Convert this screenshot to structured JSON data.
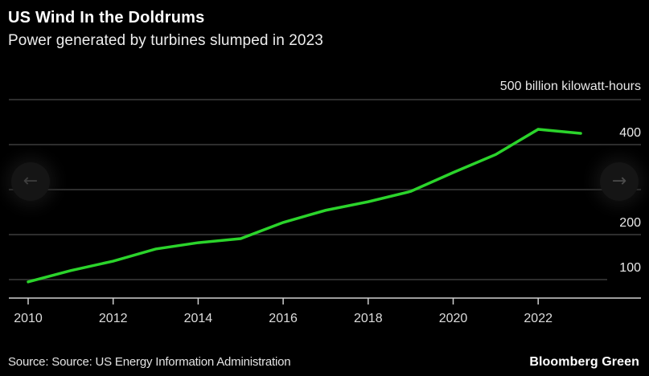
{
  "header": {
    "title": "US Wind In the Doldrums",
    "subtitle": "Power generated by turbines slumped in 2023"
  },
  "chart_data": {
    "type": "line",
    "title": "US Wind In the Doldrums",
    "subtitle": "Power generated by turbines slumped in 2023",
    "unit_label": "500 billion kilowatt-hours",
    "x": [
      2010,
      2011,
      2012,
      2013,
      2014,
      2015,
      2016,
      2017,
      2018,
      2019,
      2020,
      2021,
      2022,
      2023
    ],
    "series": [
      {
        "name": "US wind power generated (billion kilowatt-hours)",
        "color": "#2bd42b",
        "values": [
          95,
          120,
          141,
          168,
          182,
          191,
          227,
          254,
          273,
          296,
          338,
          378,
          434,
          425
        ]
      }
    ],
    "x_tick_labels": [
      "2010",
      "2012",
      "2014",
      "2016",
      "2018",
      "2020",
      "2022"
    ],
    "x_ticks": [
      2010,
      2012,
      2014,
      2016,
      2018,
      2020,
      2022
    ],
    "y_gridlines": [
      100,
      200,
      300,
      400,
      500
    ],
    "y_labeled_ticks": [
      100,
      200,
      400
    ],
    "xlim": [
      2009.5,
      2024.4
    ],
    "ylim": [
      40,
      560
    ],
    "grid": "horizontal-only",
    "legend": "none"
  },
  "colors": {
    "background": "#000000",
    "accent_green": "#2bd42b",
    "gridline": "#2e2e2e",
    "axis_line": "#d0d0d0",
    "tick_text": "#dcdcdc",
    "label_text": "#e8e8e8"
  },
  "nav": {
    "prev_icon": "arrow-left",
    "next_icon": "arrow-right",
    "prev_glyph": "←",
    "next_glyph": "→"
  },
  "footer": {
    "source": "Source: Source: US Energy Information Administration",
    "brand": "Bloomberg Green"
  }
}
